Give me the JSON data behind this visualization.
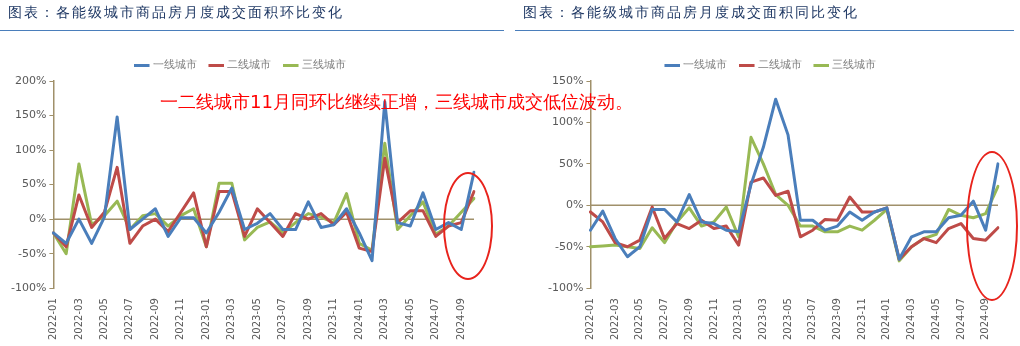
{
  "chart_data": [
    {
      "type": "line",
      "title": "图表：各能级城市商品房月度成交面积环比变化",
      "annotations": [
        "一二线城市11月同环比继续正增，三线城市成交低位波动。"
      ],
      "categories": [
        "2022-01",
        null,
        "2022-03",
        null,
        "2022-05",
        null,
        "2022-07",
        null,
        "2022-09",
        null,
        "2022-11",
        null,
        "2023-01",
        null,
        "2023-03",
        null,
        "2023-05",
        null,
        "2023-07",
        null,
        "2023-09",
        null,
        "2023-11",
        null,
        "2024-01",
        null,
        "2024-03",
        null,
        "2024-05",
        null,
        "2024-07",
        null,
        "2024-09",
        null
      ],
      "series": [
        {
          "name": "一线城市",
          "color": "#4a7ebb",
          "values": [
            -20,
            -35,
            0,
            -35,
            3,
            148,
            -15,
            0,
            15,
            -25,
            2,
            2,
            -20,
            10,
            45,
            -15,
            -6,
            8,
            -15,
            -15,
            25,
            -12,
            -8,
            15,
            -20,
            -60,
            170,
            -5,
            -10,
            38,
            -15,
            -5,
            -15,
            68
          ]
        },
        {
          "name": "二线城市",
          "color": "#be4b48",
          "values": [
            -20,
            -40,
            35,
            -12,
            10,
            75,
            -35,
            -10,
            0,
            -18,
            10,
            38,
            -40,
            40,
            40,
            -25,
            15,
            -5,
            -25,
            8,
            0,
            8,
            -8,
            10,
            -42,
            -47,
            88,
            -5,
            12,
            12,
            -25,
            -10,
            -5,
            40
          ]
        },
        {
          "name": "三线城市",
          "color": "#98b954",
          "values": [
            -20,
            -50,
            80,
            -8,
            5,
            26,
            -15,
            5,
            8,
            -10,
            5,
            15,
            -40,
            52,
            52,
            -30,
            -12,
            -4,
            -20,
            -5,
            8,
            3,
            -5,
            37,
            -35,
            -45,
            110,
            -15,
            5,
            25,
            -22,
            -10,
            10,
            30
          ]
        }
      ],
      "ylim": [
        -100,
        200
      ],
      "yticks": [
        {
          "value": -100,
          "label": "-100%"
        },
        {
          "value": -50,
          "label": "-50%"
        },
        {
          "value": 0,
          "label": "0%"
        },
        {
          "value": 50,
          "label": "50%"
        },
        {
          "value": 100,
          "label": "100%"
        },
        {
          "value": 150,
          "label": "150%"
        },
        {
          "value": 200,
          "label": "200%"
        }
      ],
      "grid": false,
      "legend": "top",
      "marker": "none",
      "ref_lines": [
        {
          "axis": "y",
          "value": 0,
          "color": "#a0906a"
        }
      ]
    },
    {
      "type": "line",
      "title": "图表：各能级城市商品房月度成交面积同比变化",
      "categories": [
        "2022-01",
        null,
        "2022-03",
        null,
        "2022-05",
        null,
        "2022-07",
        null,
        "2022-09",
        null,
        "2022-11",
        null,
        "2023-01",
        null,
        "2023-03",
        null,
        "2023-05",
        null,
        "2023-07",
        null,
        "2023-09",
        null,
        "2023-11",
        null,
        "2024-01",
        null,
        "2024-03",
        null,
        "2024-05",
        null,
        "2024-07",
        null,
        "2024-09",
        null
      ],
      "series": [
        {
          "name": "一线城市",
          "color": "#4a7ebb",
          "values": [
            -30,
            -7,
            -40,
            -62,
            -50,
            -5,
            -5,
            -20,
            13,
            -20,
            -22,
            -30,
            -32,
            25,
            70,
            128,
            85,
            -18,
            -18,
            -30,
            -25,
            -8,
            -18,
            -8,
            -3,
            -65,
            -38,
            -32,
            -32,
            -15,
            -12,
            5,
            -30,
            50
          ]
        },
        {
          "name": "二线城市",
          "color": "#be4b48",
          "values": [
            -8,
            -20,
            -45,
            -50,
            -42,
            -2,
            -40,
            -22,
            -28,
            -18,
            -28,
            -25,
            -48,
            28,
            33,
            12,
            17,
            -38,
            -30,
            -17,
            -18,
            10,
            -8,
            -8,
            -3,
            -65,
            -50,
            -40,
            -45,
            -28,
            -22,
            -40,
            -42,
            -27
          ]
        },
        {
          "name": "三线城市",
          "color": "#98b954",
          "values": [
            -50,
            -49,
            -48,
            -50,
            -52,
            -27,
            -45,
            -20,
            -3,
            -25,
            -20,
            -2,
            -38,
            82,
            50,
            13,
            0,
            -25,
            -25,
            -32,
            -32,
            -25,
            -30,
            -18,
            -5,
            -67,
            -50,
            -40,
            -35,
            -5,
            -12,
            -15,
            -10,
            23
          ]
        }
      ],
      "ylim": [
        -100,
        150
      ],
      "yticks": [
        {
          "value": -100,
          "label": "-100%"
        },
        {
          "value": -50,
          "label": "-50%"
        },
        {
          "value": 0,
          "label": "0%"
        },
        {
          "value": 50,
          "label": "50%"
        },
        {
          "value": 100,
          "label": "100%"
        },
        {
          "value": 150,
          "label": "150%"
        }
      ],
      "grid": false,
      "legend": "top",
      "marker": "none",
      "ref_lines": [
        {
          "axis": "y",
          "value": 0,
          "color": "#a0906a"
        }
      ]
    }
  ]
}
